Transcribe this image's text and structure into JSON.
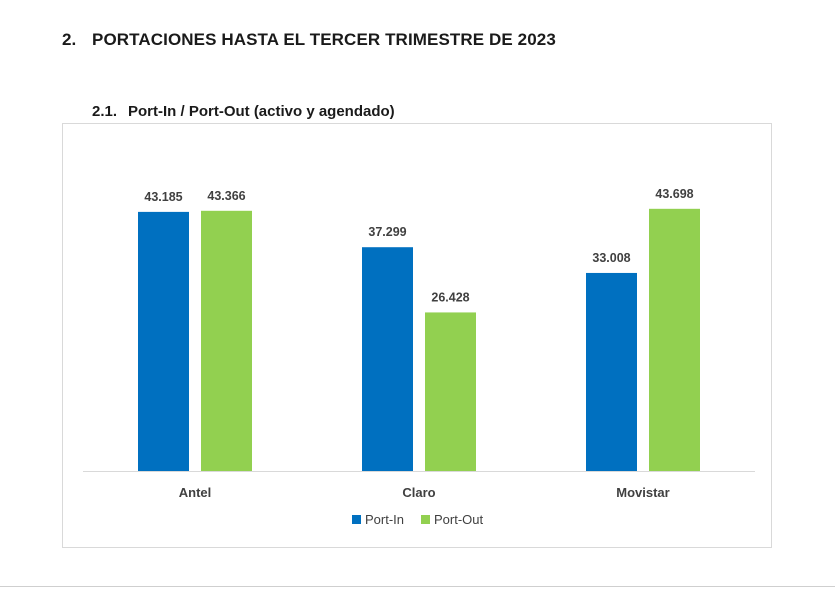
{
  "heading": {
    "number": "2.",
    "title": "PORTACIONES HASTA EL TERCER TRIMESTRE DE 2023"
  },
  "subheading": {
    "number": "2.1.",
    "title": "Port-In / Port-Out (activo y agendado)"
  },
  "colors": {
    "port_in": "#0070c0",
    "port_out": "#92d050",
    "axis": "#d9d9d9"
  },
  "chart_data": {
    "type": "bar",
    "categories": [
      "Antel",
      "Claro",
      "Movistar"
    ],
    "series": [
      {
        "name": "Port-In",
        "values": [
          43185,
          37299,
          33008
        ],
        "labels": [
          "43.185",
          "37.299",
          "33.008"
        ]
      },
      {
        "name": "Port-Out",
        "values": [
          43366,
          26428,
          43698
        ],
        "labels": [
          "43.366",
          "26.428",
          "43.698"
        ]
      }
    ],
    "ylim": [
      0,
      50000
    ],
    "grid": false,
    "legend": "bottom"
  }
}
